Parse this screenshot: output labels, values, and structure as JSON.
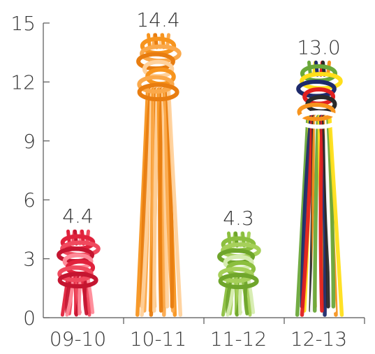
{
  "chart_data": {
    "type": "bar",
    "categories": [
      "09-10",
      "10-11",
      "11-12",
      "12-13"
    ],
    "values": [
      4.4,
      14.4,
      4.3,
      13.0
    ],
    "data_labels": [
      "4.4",
      "14.4",
      "4.3",
      "13.0"
    ],
    "yticks": [
      0,
      3,
      6,
      9,
      12,
      15
    ],
    "ylim": [
      0,
      15
    ],
    "title": "",
    "xlabel": "",
    "ylabel": "",
    "grid": false,
    "legend": "none",
    "bar_style": "knotted-thread",
    "series_colors": [
      [
        "#e0223c",
        "#f04a5e",
        "#c41530",
        "#ff8a98"
      ],
      [
        "#f7941d",
        "#fba94b",
        "#e87d10",
        "#ffd19b"
      ],
      [
        "#8cbf3f",
        "#a6d05a",
        "#6fa52b",
        "#d6ecb0"
      ],
      [
        "#6aa83a",
        "#ffdf1a",
        "#1d2a6b",
        "#e02020",
        "#2a2a2a",
        "#f7941d",
        "#ffffff"
      ]
    ]
  }
}
